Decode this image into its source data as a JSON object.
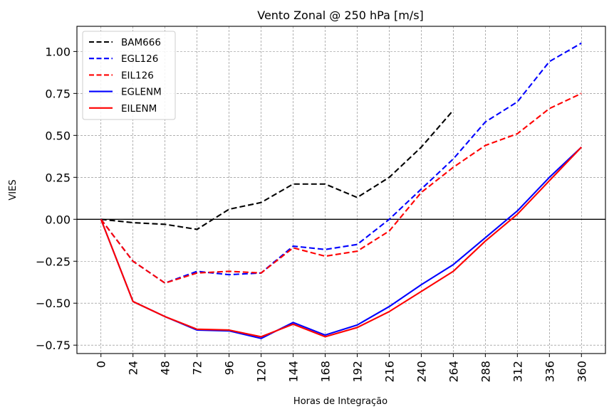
{
  "chart_data": {
    "type": "line",
    "title": "Vento Zonal @ 250 hPa [m/s]",
    "xlabel": "Horas de Integração",
    "ylabel": "VIES",
    "x": [
      0,
      24,
      48,
      72,
      96,
      120,
      144,
      168,
      192,
      216,
      240,
      264,
      288,
      312,
      336,
      360
    ],
    "xlim": [
      -18,
      378
    ],
    "ylim": [
      -0.8,
      1.15
    ],
    "yticks": [
      -0.75,
      -0.5,
      -0.25,
      0.0,
      0.25,
      0.5,
      0.75,
      1.0
    ],
    "ytick_labels": [
      "−0.75",
      "−0.50",
      "−0.25",
      "0.00",
      "0.25",
      "0.50",
      "0.75",
      "1.00"
    ],
    "xtick_labels": [
      "0",
      "24",
      "48",
      "72",
      "96",
      "120",
      "144",
      "168",
      "192",
      "216",
      "240",
      "264",
      "288",
      "312",
      "336",
      "360"
    ],
    "grid": true,
    "zero_line": true,
    "legend_position": "upper-left",
    "series": [
      {
        "name": "BAM666",
        "color": "#000000",
        "dash": true,
        "values": [
          0.0,
          -0.02,
          -0.03,
          -0.06,
          0.06,
          0.1,
          0.21,
          0.21,
          0.13,
          0.25,
          0.43,
          0.65,
          null,
          null,
          null,
          null
        ]
      },
      {
        "name": "EGL126",
        "color": "#0000ff",
        "dash": true,
        "values": [
          0.0,
          -0.25,
          -0.38,
          -0.31,
          -0.33,
          -0.32,
          -0.16,
          -0.18,
          -0.15,
          0.0,
          0.18,
          0.36,
          0.58,
          0.7,
          0.94,
          1.05
        ]
      },
      {
        "name": "EIL126",
        "color": "#ff0000",
        "dash": true,
        "values": [
          0.0,
          -0.25,
          -0.38,
          -0.32,
          -0.31,
          -0.32,
          -0.17,
          -0.22,
          -0.19,
          -0.07,
          0.16,
          0.31,
          0.44,
          0.51,
          0.66,
          0.75
        ]
      },
      {
        "name": "EGLENM",
        "color": "#0000ff",
        "dash": false,
        "values": [
          0.0,
          -0.49,
          -0.58,
          -0.66,
          -0.665,
          -0.71,
          -0.615,
          -0.69,
          -0.63,
          -0.52,
          -0.39,
          -0.27,
          -0.11,
          0.05,
          0.25,
          0.43
        ]
      },
      {
        "name": "EILENM",
        "color": "#ff0000",
        "dash": false,
        "values": [
          0.0,
          -0.49,
          -0.58,
          -0.655,
          -0.66,
          -0.7,
          -0.625,
          -0.7,
          -0.645,
          -0.55,
          -0.43,
          -0.31,
          -0.13,
          0.03,
          0.23,
          0.43
        ]
      }
    ]
  }
}
